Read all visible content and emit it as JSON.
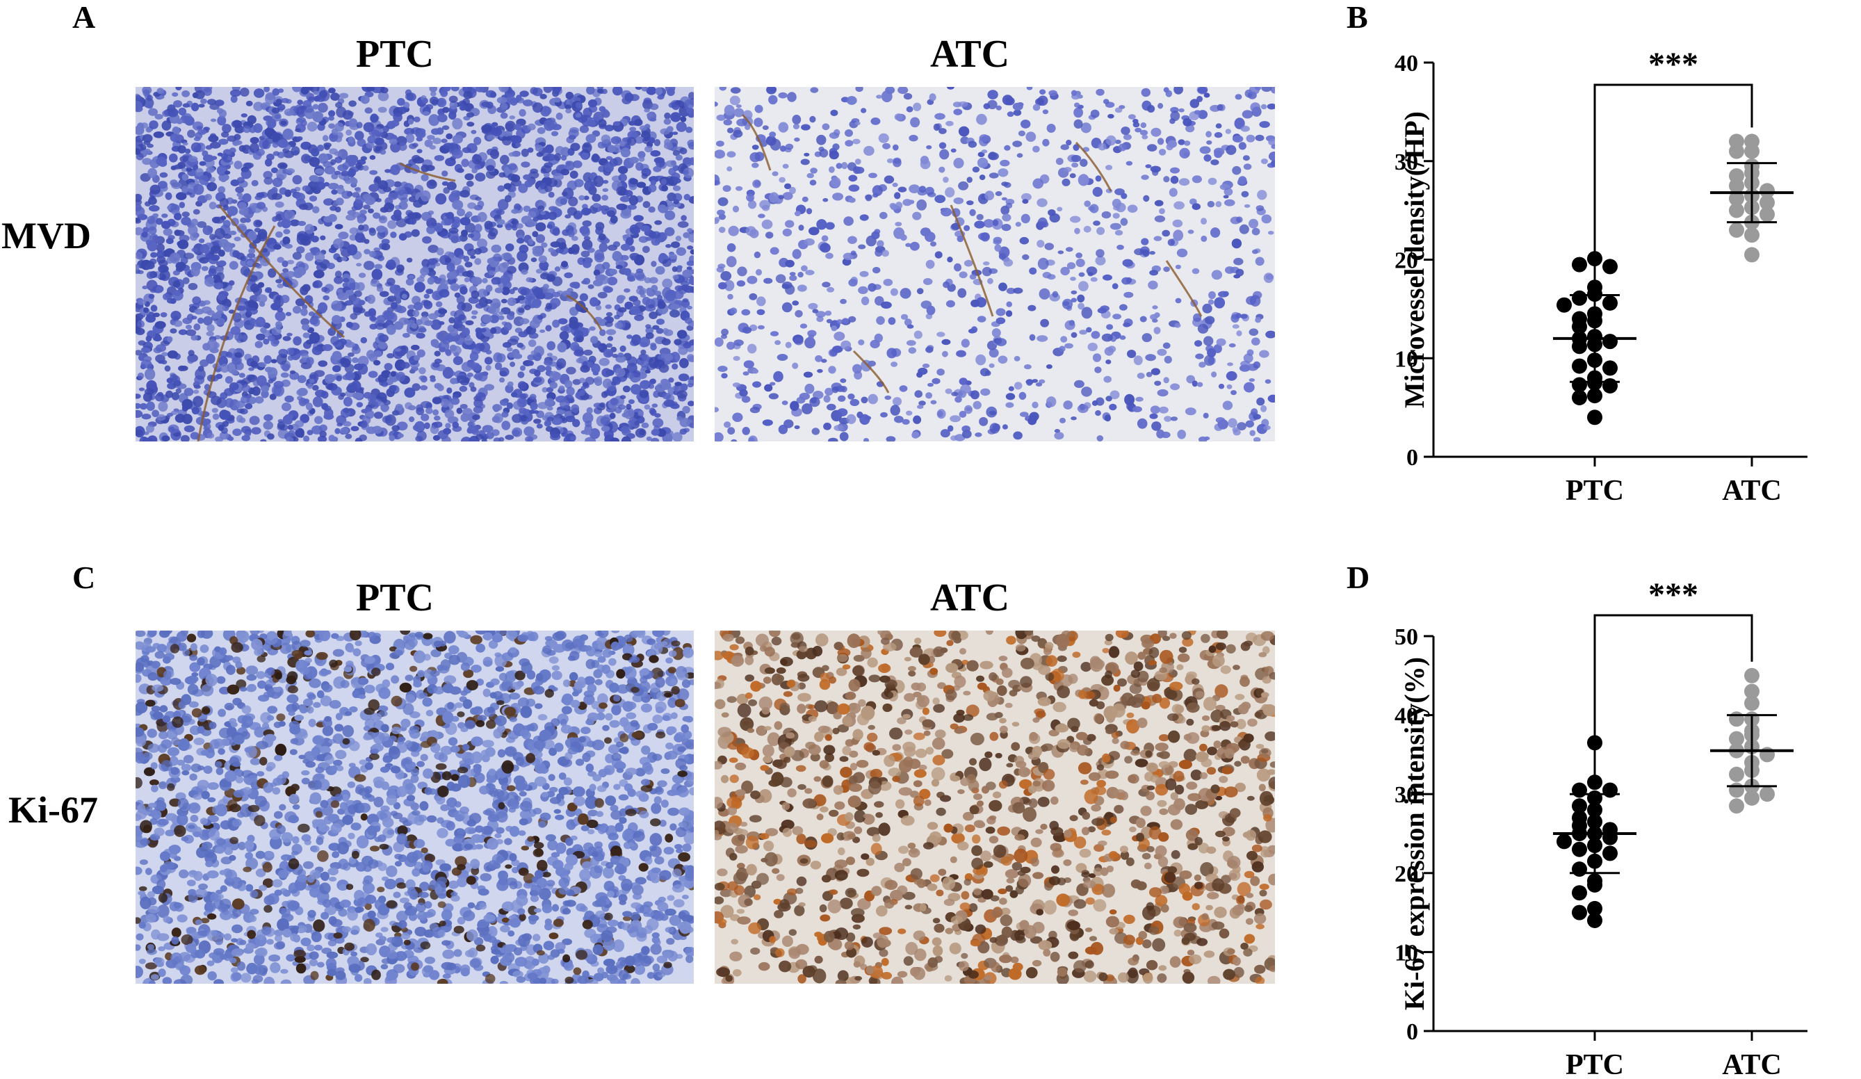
{
  "panels": {
    "a_letter": "A",
    "b_letter": "B",
    "c_letter": "C",
    "d_letter": "D"
  },
  "images": {
    "col_labels": [
      "PTC",
      "ATC"
    ],
    "row_labels": [
      "MVD",
      "Ki-67"
    ]
  },
  "colors": {
    "mvd_ptc_nuclei": "#4552b8",
    "mvd_atc_nuclei": "#5560c6",
    "mvd_atc_bg": "#e9eaf0",
    "brown_stain": "#8a5a2a",
    "ki67_ptc_nuclei": "#6478c8",
    "ki67_atc_bg": "#e6dfd8",
    "ptc_points": "#000000",
    "atc_points": "#9a9a9a"
  },
  "chart_data": [
    {
      "type": "scatter",
      "panel": "B",
      "title": "",
      "xlabel": "",
      "ylabel": "Microvessel density(/HP)",
      "categories": [
        "PTC",
        "ATC"
      ],
      "ylim": [
        0,
        40
      ],
      "yticks": [
        0,
        10,
        20,
        30,
        40
      ],
      "significance": "***",
      "series": [
        {
          "category": "PTC",
          "mean": 12,
          "sd_low": 7.6,
          "sd_high": 16.4,
          "values": [
            20.1,
            19.5,
            19.3,
            17.2,
            16.5,
            16.1,
            15.6,
            15.4,
            14.5,
            14.0,
            13.8,
            13.2,
            12.2,
            12.0,
            11.7,
            11.4,
            11.2,
            9.8,
            9.2,
            9.0,
            8.0,
            7.5,
            7.3,
            7.2,
            6.2,
            6.0,
            4.0
          ]
        },
        {
          "category": "ATC",
          "mean": 26.8,
          "sd_low": 23.8,
          "sd_high": 29.8,
          "values": [
            32.0,
            32.0,
            31.0,
            31.0,
            29.5,
            28.8,
            28.5,
            27.8,
            27.5,
            27.0,
            26.5,
            26.2,
            25.8,
            25.3,
            25.0,
            24.6,
            23.8,
            23.0,
            22.5,
            20.5
          ]
        }
      ]
    },
    {
      "type": "scatter",
      "panel": "D",
      "title": "",
      "xlabel": "",
      "ylabel": "Ki-67 expression intensity(%)",
      "categories": [
        "PTC",
        "ATC"
      ],
      "ylim": [
        0,
        50
      ],
      "yticks": [
        0,
        10,
        20,
        30,
        40,
        50
      ],
      "significance": "***",
      "series": [
        {
          "category": "PTC",
          "mean": 25,
          "sd_low": 20,
          "sd_high": 30,
          "values": [
            36.5,
            31.5,
            30.5,
            30.5,
            29.5,
            28.5,
            28.0,
            27.0,
            26.5,
            26.0,
            25.5,
            25.0,
            25.0,
            24.5,
            24.0,
            23.5,
            23.0,
            22.5,
            21.5,
            20.5,
            19.0,
            18.5,
            17.5,
            15.5,
            15.0,
            14.0
          ]
        },
        {
          "category": "ATC",
          "mean": 35.5,
          "sd_low": 31,
          "sd_high": 40,
          "values": [
            45.0,
            43.0,
            41.5,
            39.5,
            39.5,
            38.0,
            37.5,
            37.0,
            36.0,
            35.5,
            35.0,
            34.0,
            33.0,
            32.5,
            31.0,
            30.5,
            30.0,
            29.5,
            28.5
          ]
        }
      ]
    }
  ]
}
